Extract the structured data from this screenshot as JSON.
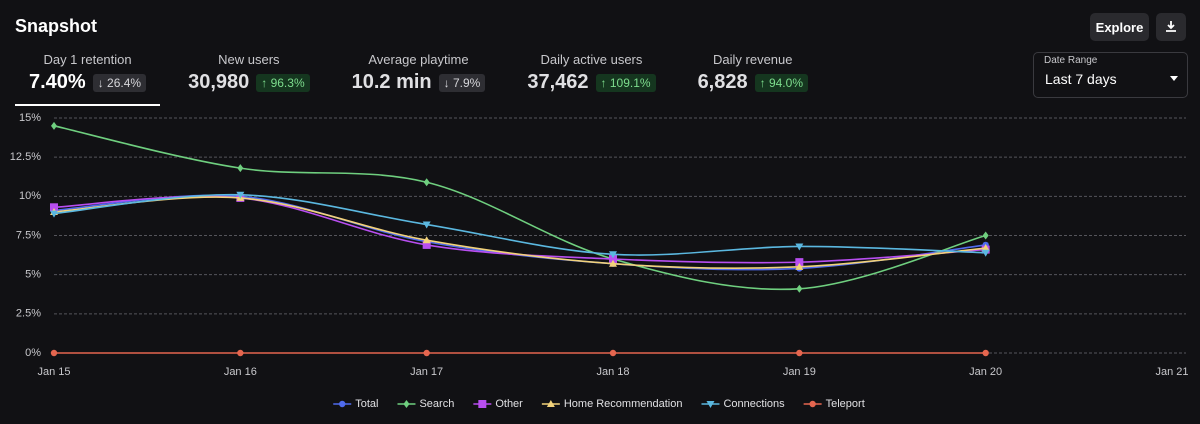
{
  "header": {
    "title": "Snapshot",
    "explore": "Explore"
  },
  "metrics": [
    {
      "label": "Day 1 retention",
      "value": "7.40%",
      "change": "↓ 26.4%",
      "trend": "down",
      "selected": true
    },
    {
      "label": "New users",
      "value": "30,980",
      "change": "↑ 96.3%",
      "trend": "up"
    },
    {
      "label": "Average playtime",
      "value": "10.2 min",
      "change": "↓ 7.9%",
      "trend": "down"
    },
    {
      "label": "Daily active users",
      "value": "37,462",
      "change": "↑ 109.1%",
      "trend": "up"
    },
    {
      "label": "Daily revenue",
      "value": "6,828",
      "change": "↑ 94.0%",
      "trend": "up"
    }
  ],
  "date_range": {
    "label": "Date Range",
    "value": "Last 7 days"
  },
  "chart_data": {
    "type": "line",
    "categories": [
      "Jan 15",
      "Jan 16",
      "Jan 17",
      "Jan 18",
      "Jan 19",
      "Jan 20",
      "Jan 21"
    ],
    "ylim": [
      0,
      15
    ],
    "yticks": [
      {
        "value": 0,
        "label": "0%"
      },
      {
        "value": 2.5,
        "label": "2.5%"
      },
      {
        "value": 5,
        "label": "5%"
      },
      {
        "value": 7.5,
        "label": "7.5%"
      },
      {
        "value": 10,
        "label": "10%"
      },
      {
        "value": 12.5,
        "label": "12.5%"
      },
      {
        "value": 15,
        "label": "15%"
      }
    ],
    "grid": true,
    "smooth": true,
    "legend": "bottom",
    "series": [
      {
        "name": "Total",
        "color": "#4f6bed",
        "marker": "circle",
        "values": [
          9.1,
          10.0,
          7.1,
          5.7,
          5.4,
          6.9,
          null
        ]
      },
      {
        "name": "Search",
        "color": "#6fcf7f",
        "marker": "diamond",
        "values": [
          14.5,
          11.8,
          10.9,
          6.0,
          4.1,
          7.5,
          null
        ]
      },
      {
        "name": "Other",
        "color": "#b84ef0",
        "marker": "square",
        "values": [
          9.3,
          9.9,
          6.9,
          6.0,
          5.8,
          6.6,
          null
        ]
      },
      {
        "name": "Home Recommendation",
        "color": "#f2d27a",
        "marker": "triangle-up",
        "values": [
          9.0,
          9.9,
          7.2,
          5.7,
          5.5,
          6.7,
          null
        ]
      },
      {
        "name": "Connections",
        "color": "#5bb8e0",
        "marker": "triangle-down",
        "values": [
          8.9,
          10.1,
          8.2,
          6.3,
          6.8,
          6.4,
          null
        ]
      },
      {
        "name": "Teleport",
        "color": "#e5664f",
        "marker": "circle",
        "values": [
          0,
          0,
          0,
          0,
          0,
          0,
          null
        ]
      }
    ]
  }
}
